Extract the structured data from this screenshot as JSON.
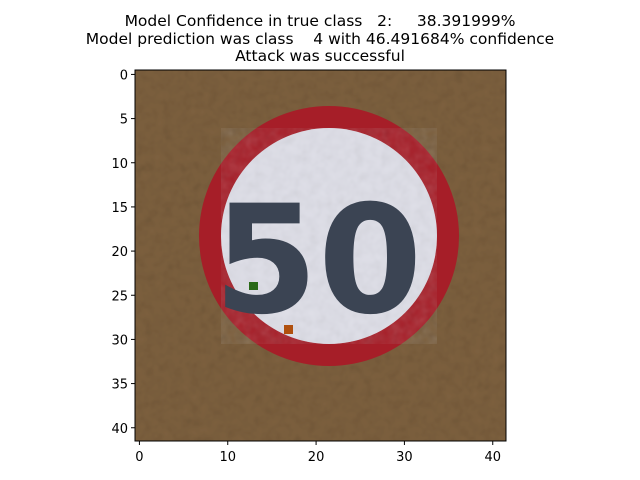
{
  "title": {
    "line1": "Model Confidence in true class   2:     38.391999%",
    "line2": "Model prediction was class    4 with 46.491684% confidence",
    "line3": "Attack was successful"
  },
  "image": {
    "description_hidden": "",
    "grid_size": 42,
    "sign_text": "50",
    "colors": {
      "background": "#6f5638",
      "ring": "#a61e28",
      "inner": "#dcdce6",
      "digits": "#3b4453",
      "spot_green": "#2a6a18",
      "spot_orange": "#b0500e"
    }
  },
  "x_ticks": [
    "0",
    "10",
    "20",
    "30",
    "40"
  ],
  "y_ticks": [
    "0",
    "5",
    "10",
    "15",
    "20",
    "25",
    "30",
    "35",
    "40"
  ]
}
